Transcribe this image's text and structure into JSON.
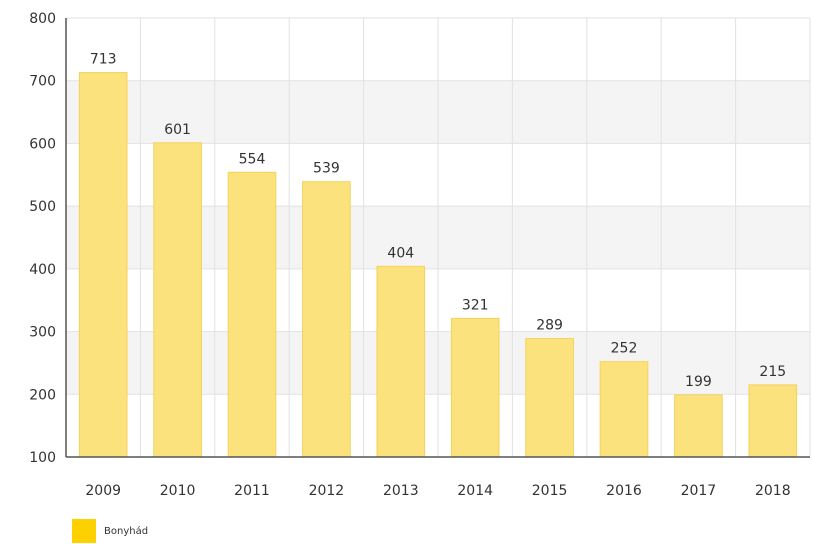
{
  "chart_data": {
    "type": "bar",
    "categories": [
      "2009",
      "2010",
      "2011",
      "2012",
      "2013",
      "2014",
      "2015",
      "2016",
      "2017",
      "2018"
    ],
    "series": [
      {
        "name": "Bonyhád",
        "values": [
          713,
          601,
          554,
          539,
          404,
          321,
          289,
          252,
          199,
          215
        ]
      }
    ],
    "ylim": [
      100,
      800
    ],
    "yticks": [
      100,
      200,
      300,
      400,
      500,
      600,
      700,
      800
    ],
    "title": "",
    "xlabel": "",
    "ylabel": "",
    "grid": true,
    "legend_position": "bottom-left"
  },
  "colors": {
    "bar": "#fce27c",
    "bar_edge": "#f3d35c",
    "band": "#f4f4f4",
    "grid": "#e2e2e2",
    "axis": "#555555",
    "legend_swatch": "#fdd000"
  }
}
